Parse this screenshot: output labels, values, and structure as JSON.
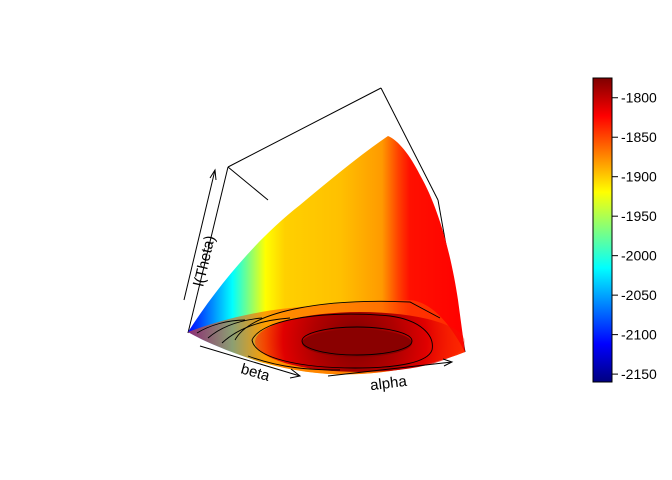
{
  "chart_data": {
    "type": "surface3d",
    "title": "",
    "axes": {
      "x_label": "beta",
      "y_label": "alpha",
      "z_label": "l(Theta)"
    },
    "z_range": [
      -2150,
      -1775
    ],
    "maximum_region": {
      "value": -1785
    },
    "contour_levels": [
      -2100,
      -2050,
      -2000,
      -1950,
      -1900,
      -1850,
      -1800
    ],
    "colorbar": {
      "range": [
        -2160,
        -1775
      ],
      "ticks": [
        {
          "value": -1800,
          "label": "-1800"
        },
        {
          "value": -1850,
          "label": "-1850"
        },
        {
          "value": -1900,
          "label": "-1900"
        },
        {
          "value": -1950,
          "label": "-1950"
        },
        {
          "value": -2000,
          "label": "-2000"
        },
        {
          "value": -2050,
          "label": "-2050"
        },
        {
          "value": -2100,
          "label": "-2100"
        },
        {
          "value": -2150,
          "label": "-2150"
        }
      ],
      "palette": [
        "#00007F",
        "#0000FF",
        "#007FFF",
        "#00FFFF",
        "#7FFF7F",
        "#FFFF00",
        "#FF7F00",
        "#FF0000",
        "#7F0000"
      ]
    }
  }
}
